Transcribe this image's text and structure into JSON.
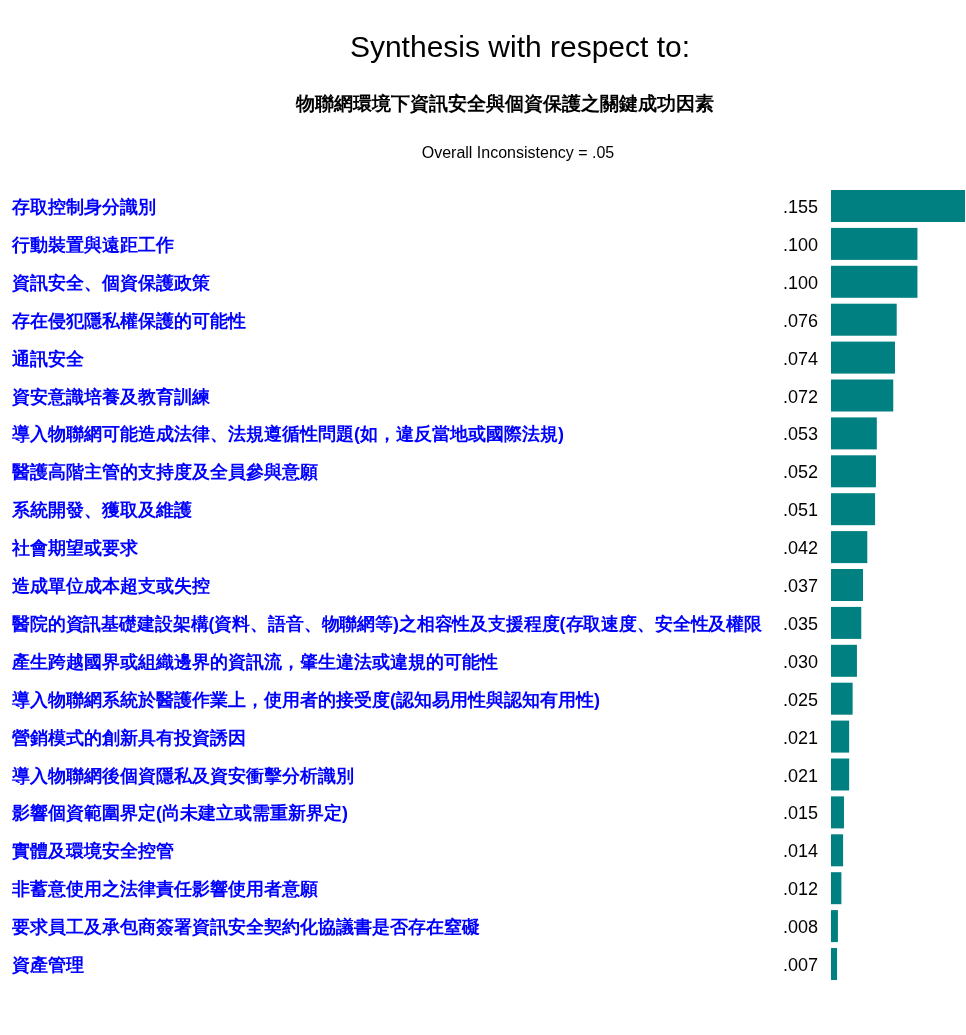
{
  "chart_data": {
    "type": "bar",
    "orientation": "horizontal",
    "title": "Synthesis with respect to:",
    "subtitle": "物聯網環境下資訊安全與個資保護之關鍵成功因素",
    "annotations": [
      "Overall Inconsistency = .05"
    ],
    "categories": [
      "存取控制身分識別",
      "行動裝置與遠距工作",
      "資訊安全、個資保護政策",
      "存在侵犯隱私權保護的可能性",
      "通訊安全",
      "資安意識培養及教育訓練",
      "導入物聯網可能造成法律、法規遵循性問題(如，違反當地或國際法規)",
      "醫護高階主管的支持度及全員參與意願",
      "系統開發、獲取及維護",
      "社會期望或要求",
      "造成單位成本超支或失控",
      "醫院的資訊基礎建設架構(資料、語音、物聯網等)之相容性及支援程度(存取速度、安全性及權限",
      "產生跨越國界或組織邊界的資訊流，肇生違法或違規的可能性",
      "導入物聯網系統於醫護作業上，使用者的接受度(認知易用性與認知有用性)",
      "營銷模式的創新具有投資誘因",
      "導入物聯網後個資隱私及資安衝擊分析識別",
      "影響個資範圍界定(尚未建立或需重新界定)",
      "實體及環境安全控管",
      "非蓄意使用之法律責任影響使用者意願",
      "要求員工及承包商簽署資訊安全契約化協議書是否存在窒礙",
      "資產管理"
    ],
    "values": [
      0.155,
      0.1,
      0.1,
      0.076,
      0.074,
      0.072,
      0.053,
      0.052,
      0.051,
      0.042,
      0.037,
      0.035,
      0.03,
      0.025,
      0.021,
      0.021,
      0.015,
      0.014,
      0.012,
      0.008,
      0.007
    ],
    "value_labels": [
      ".155",
      ".100",
      ".100",
      ".076",
      ".074",
      ".072",
      ".053",
      ".052",
      ".051",
      ".042",
      ".037",
      ".035",
      ".030",
      ".025",
      ".021",
      ".021",
      ".015",
      ".014",
      ".012",
      ".008",
      ".007"
    ],
    "color": "#008080"
  }
}
